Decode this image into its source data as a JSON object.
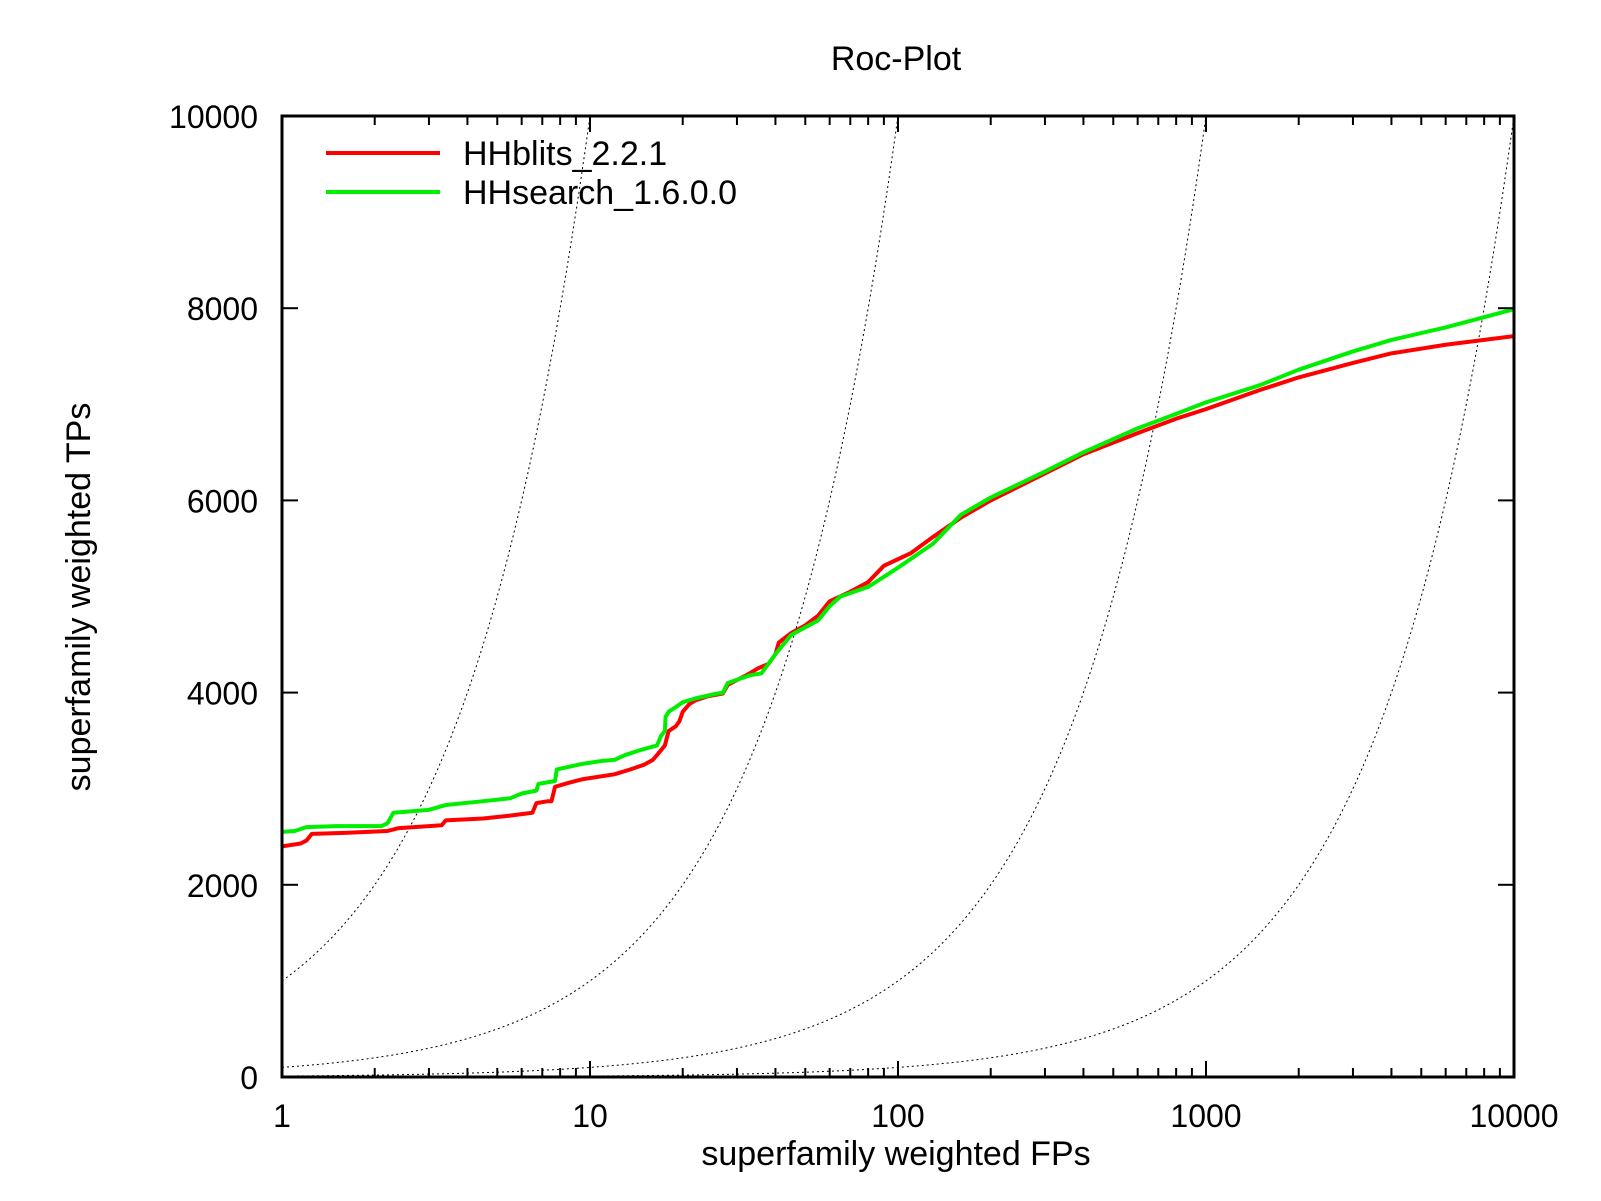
{
  "chart_data": {
    "type": "line",
    "title": "Roc-Plot",
    "xlabel": "superfamily weighted FPs",
    "ylabel": "superfamily weighted TPs",
    "xscale": "log",
    "xlim": [
      1,
      10000
    ],
    "ylim": [
      0,
      10000
    ],
    "x_ticks": [
      1,
      10,
      100,
      1000,
      10000
    ],
    "x_tick_labels": [
      "1",
      "10",
      "100",
      "1000",
      "10000"
    ],
    "y_ticks": [
      0,
      2000,
      4000,
      6000,
      8000,
      10000
    ],
    "y_tick_labels": [
      "0",
      "2000",
      "4000",
      "6000",
      "8000",
      "10000"
    ],
    "legend_position": "top-left",
    "series": [
      {
        "name": "HHblits_2.2.1",
        "color": "#ff0000",
        "points": [
          [
            1,
            2400
          ],
          [
            1.15,
            2430
          ],
          [
            1.2,
            2460
          ],
          [
            1.25,
            2530
          ],
          [
            1.6,
            2540
          ],
          [
            2.2,
            2560
          ],
          [
            2.4,
            2590
          ],
          [
            3,
            2610
          ],
          [
            3.3,
            2620
          ],
          [
            3.4,
            2670
          ],
          [
            4.5,
            2690
          ],
          [
            5.5,
            2720
          ],
          [
            6.5,
            2750
          ],
          [
            6.7,
            2850
          ],
          [
            7.3,
            2870
          ],
          [
            7.5,
            2870
          ],
          [
            7.7,
            3020
          ],
          [
            8.5,
            3060
          ],
          [
            9.5,
            3100
          ],
          [
            12,
            3150
          ],
          [
            13.5,
            3200
          ],
          [
            15,
            3250
          ],
          [
            16,
            3300
          ],
          [
            16.5,
            3350
          ],
          [
            17.5,
            3450
          ],
          [
            18,
            3600
          ],
          [
            19,
            3650
          ],
          [
            19.5,
            3700
          ],
          [
            20,
            3800
          ],
          [
            21,
            3880
          ],
          [
            22,
            3920
          ],
          [
            24,
            3960
          ],
          [
            27,
            3990
          ],
          [
            28,
            4080
          ],
          [
            33,
            4200
          ],
          [
            35,
            4250
          ],
          [
            38,
            4300
          ],
          [
            40,
            4400
          ],
          [
            41,
            4520
          ],
          [
            45,
            4620
          ],
          [
            50,
            4700
          ],
          [
            55,
            4800
          ],
          [
            60,
            4950
          ],
          [
            70,
            5050
          ],
          [
            80,
            5150
          ],
          [
            90,
            5320
          ],
          [
            110,
            5450
          ],
          [
            130,
            5620
          ],
          [
            160,
            5820
          ],
          [
            200,
            6000
          ],
          [
            300,
            6280
          ],
          [
            400,
            6480
          ],
          [
            600,
            6700
          ],
          [
            800,
            6850
          ],
          [
            1000,
            6950
          ],
          [
            1500,
            7150
          ],
          [
            2000,
            7280
          ],
          [
            3000,
            7430
          ],
          [
            4000,
            7530
          ],
          [
            6000,
            7620
          ],
          [
            10000,
            7710
          ]
        ]
      },
      {
        "name": "HHsearch_1.6.0.0",
        "color": "#00ee00",
        "points": [
          [
            1,
            2550
          ],
          [
            1.1,
            2560
          ],
          [
            1.2,
            2600
          ],
          [
            1.5,
            2610
          ],
          [
            2.1,
            2610
          ],
          [
            2.2,
            2640
          ],
          [
            2.3,
            2750
          ],
          [
            3,
            2780
          ],
          [
            3.4,
            2830
          ],
          [
            4.5,
            2870
          ],
          [
            5.5,
            2900
          ],
          [
            6,
            2950
          ],
          [
            6.7,
            2980
          ],
          [
            6.8,
            3050
          ],
          [
            7.7,
            3080
          ],
          [
            7.8,
            3200
          ],
          [
            9.5,
            3260
          ],
          [
            11,
            3290
          ],
          [
            12,
            3300
          ],
          [
            13,
            3350
          ],
          [
            14.5,
            3400
          ],
          [
            16.5,
            3450
          ],
          [
            17,
            3550
          ],
          [
            17.5,
            3600
          ],
          [
            17.6,
            3750
          ],
          [
            18,
            3800
          ],
          [
            19,
            3850
          ],
          [
            20,
            3900
          ],
          [
            22,
            3940
          ],
          [
            25,
            3980
          ],
          [
            27,
            4000
          ],
          [
            28,
            4100
          ],
          [
            33,
            4180
          ],
          [
            36,
            4200
          ],
          [
            40,
            4400
          ],
          [
            45,
            4600
          ],
          [
            55,
            4750
          ],
          [
            60,
            4900
          ],
          [
            65,
            5000
          ],
          [
            80,
            5100
          ],
          [
            100,
            5300
          ],
          [
            130,
            5550
          ],
          [
            160,
            5850
          ],
          [
            200,
            6030
          ],
          [
            300,
            6300
          ],
          [
            400,
            6500
          ],
          [
            600,
            6750
          ],
          [
            800,
            6900
          ],
          [
            1000,
            7020
          ],
          [
            1500,
            7200
          ],
          [
            2000,
            7360
          ],
          [
            3000,
            7550
          ],
          [
            4000,
            7670
          ],
          [
            6000,
            7800
          ],
          [
            10000,
            7990
          ]
        ]
      }
    ],
    "reference_curves": [
      {
        "name": "reference-curve-1",
        "label": "",
        "k": 1000
      },
      {
        "name": "reference-curve-2",
        "label": "",
        "k": 100
      },
      {
        "name": "reference-curve-3",
        "label": "",
        "k": 10
      },
      {
        "name": "reference-curve-4",
        "label": "",
        "k": 1
      }
    ]
  }
}
